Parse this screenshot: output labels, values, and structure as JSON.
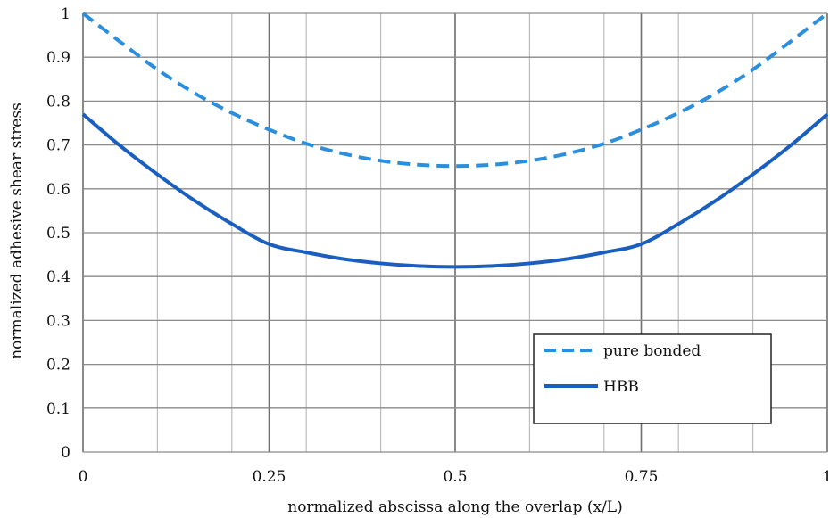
{
  "chart_data": {
    "type": "line",
    "title": "",
    "xlabel": "normalized abscissa along the overlap (x/L)",
    "ylabel": "normalized adhesive shear stress",
    "xlim": [
      0,
      1
    ],
    "ylim": [
      0,
      1
    ],
    "x_ticks": [
      "0",
      "0.25",
      "0.5",
      "0.75",
      "1"
    ],
    "y_ticks": [
      "0",
      "0.1",
      "0.2",
      "0.3",
      "0.4",
      "0.5",
      "0.6",
      "0.7",
      "0.8",
      "0.9",
      "1"
    ],
    "grid": true,
    "legend_position": "bottom-right",
    "series": [
      {
        "name": "pure bonded",
        "style": "dashed",
        "color": "#2b8fde",
        "x": [
          0,
          0.05,
          0.1,
          0.15,
          0.2,
          0.25,
          0.3,
          0.35,
          0.4,
          0.45,
          0.5,
          0.55,
          0.6,
          0.65,
          0.7,
          0.75,
          0.8,
          0.85,
          0.9,
          0.95,
          1
        ],
        "y": [
          1.0,
          0.935,
          0.872,
          0.818,
          0.773,
          0.735,
          0.703,
          0.68,
          0.664,
          0.655,
          0.652,
          0.655,
          0.664,
          0.68,
          0.703,
          0.735,
          0.773,
          0.818,
          0.872,
          0.935,
          1.0
        ]
      },
      {
        "name": "HBB",
        "style": "solid",
        "color": "#1a5fbf",
        "x": [
          0,
          0.05,
          0.1,
          0.15,
          0.2,
          0.25,
          0.3,
          0.35,
          0.4,
          0.45,
          0.5,
          0.55,
          0.6,
          0.65,
          0.7,
          0.75,
          0.8,
          0.85,
          0.9,
          0.95,
          1
        ],
        "y": [
          0.77,
          0.698,
          0.633,
          0.573,
          0.52,
          0.474,
          0.455,
          0.44,
          0.43,
          0.424,
          0.422,
          0.424,
          0.43,
          0.44,
          0.455,
          0.474,
          0.52,
          0.573,
          0.633,
          0.698,
          0.77
        ]
      }
    ]
  }
}
